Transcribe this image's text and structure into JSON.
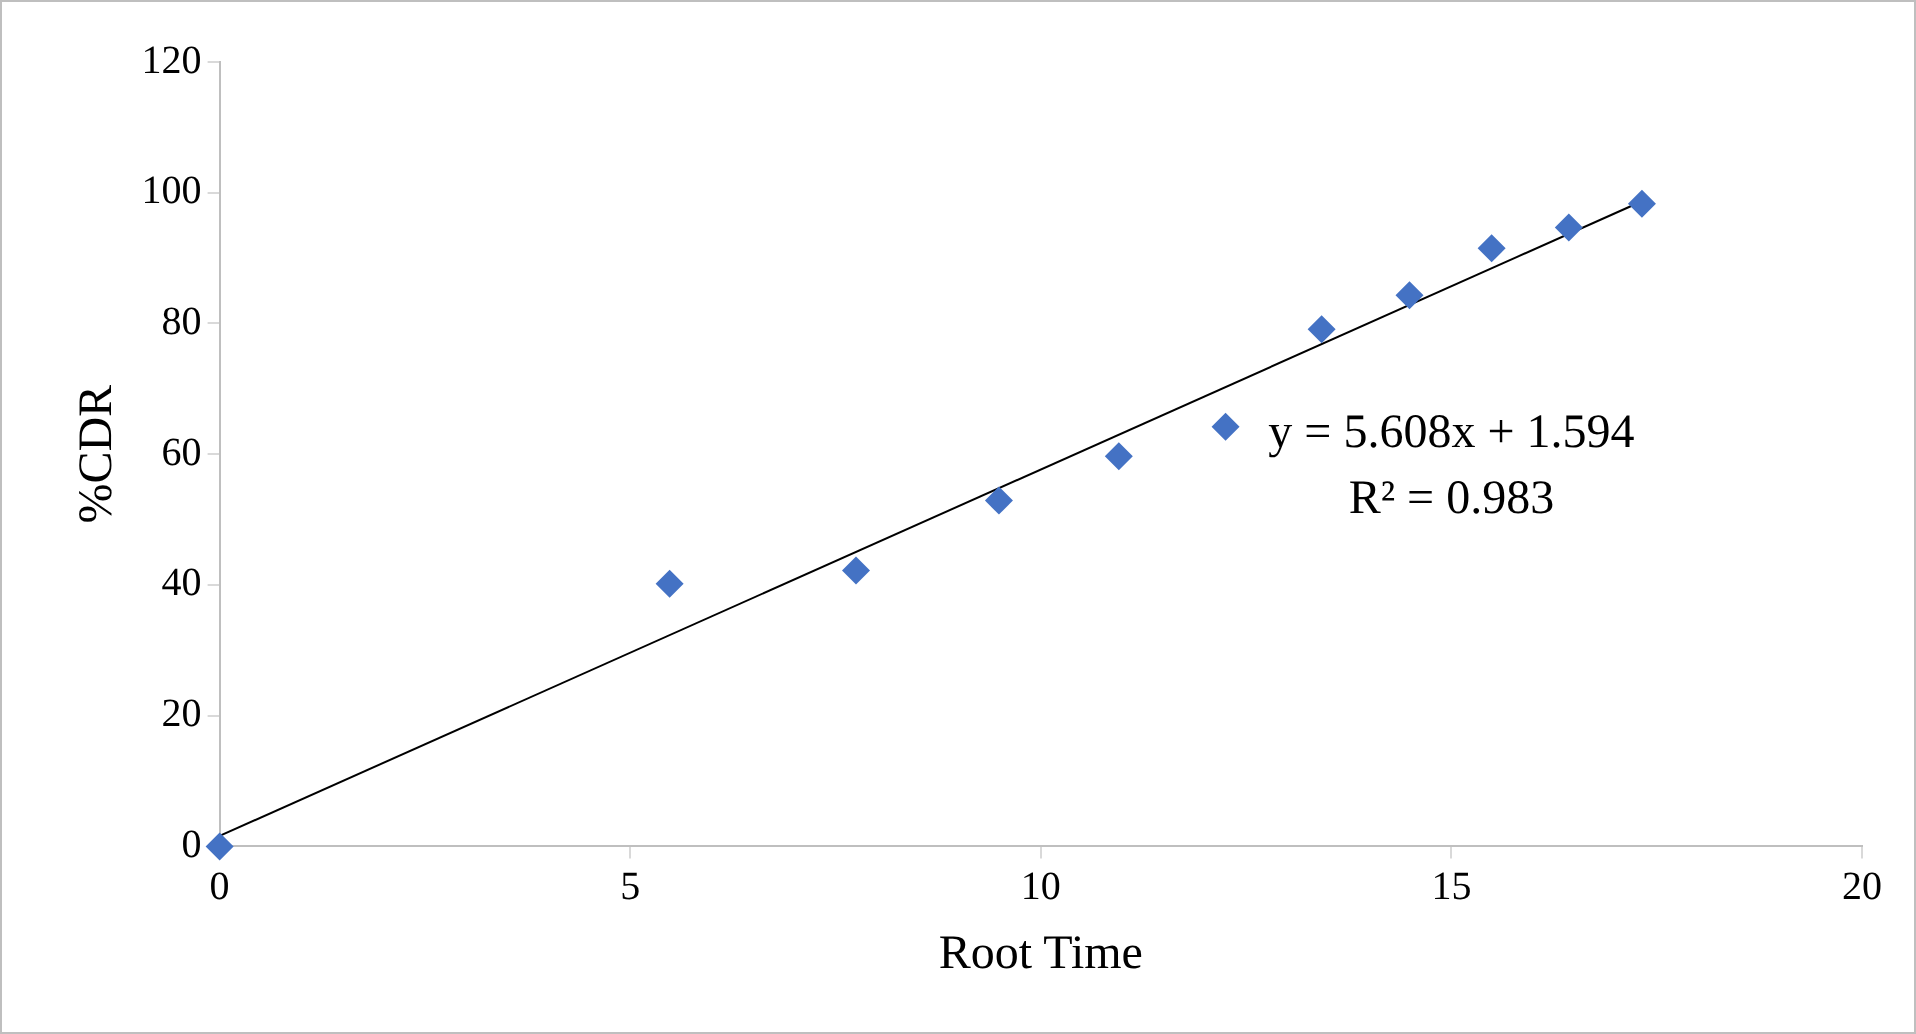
{
  "chart_data": {
    "type": "scatter",
    "xlabel": "Root Time",
    "ylabel": "%CDR",
    "xlim": [
      0,
      20
    ],
    "xticks": [
      0,
      5,
      10,
      15,
      20
    ],
    "ylim": [
      0,
      120
    ],
    "yticks": [
      0,
      20,
      40,
      60,
      80,
      100,
      120
    ],
    "grid": false,
    "legend": false,
    "marker": "diamond",
    "annotations": [
      "y = 5.608x + 1.594",
      "R² = 0.983"
    ],
    "series": [
      {
        "type": "scatter",
        "color": "#4472c4",
        "x": [
          0,
          5.48,
          7.75,
          9.49,
          10.95,
          12.25,
          13.42,
          14.49,
          15.49,
          16.43,
          17.32
        ],
        "values": [
          0,
          40.2,
          42.2,
          52.9,
          59.7,
          64.2,
          79.1,
          84.3,
          91.5,
          94.7,
          98.3
        ]
      },
      {
        "type": "line",
        "color": "#000000",
        "line_style": "solid",
        "marker": "none",
        "x": [
          0,
          17.32
        ],
        "values": [
          1.6,
          98.7
        ]
      }
    ]
  }
}
